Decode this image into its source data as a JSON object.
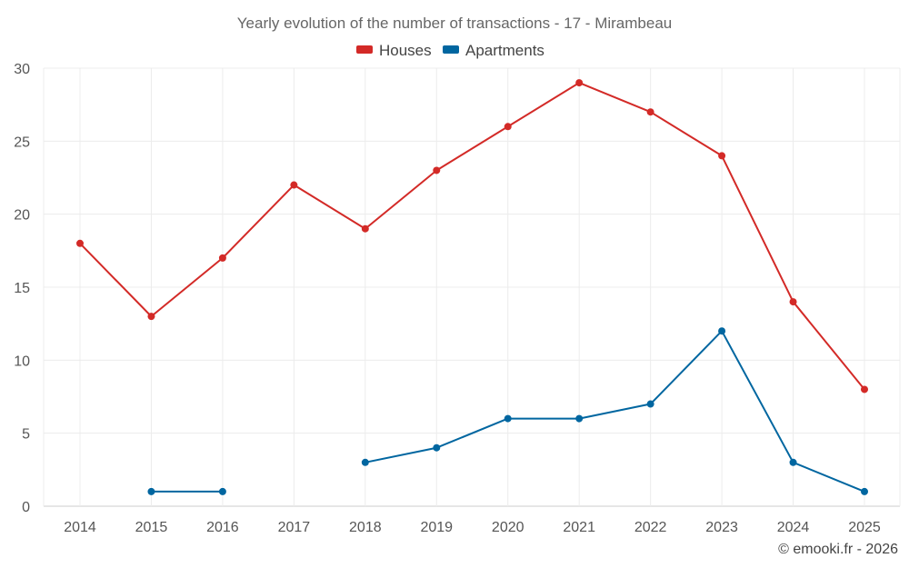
{
  "chart_data": {
    "type": "line",
    "title": "Yearly evolution of the number of transactions - 17 - Mirambeau",
    "categories": [
      "2014",
      "2015",
      "2016",
      "2017",
      "2018",
      "2019",
      "2020",
      "2021",
      "2022",
      "2023",
      "2024",
      "2025"
    ],
    "ylim": [
      0,
      30
    ],
    "yticks": [
      0,
      5,
      10,
      15,
      20,
      25,
      30
    ],
    "grid": true,
    "legend_position": "top-center",
    "series": [
      {
        "name": "Houses",
        "color": "#d32a27",
        "values": [
          18,
          13,
          17,
          22,
          19,
          23,
          26,
          29,
          27,
          24,
          14,
          8
        ]
      },
      {
        "name": "Apartments",
        "color": "#0066a0",
        "values": [
          null,
          1,
          1,
          null,
          3,
          4,
          6,
          6,
          7,
          12,
          3,
          1
        ]
      }
    ]
  },
  "footer": {
    "credit": "© emooki.fr - 2026"
  }
}
